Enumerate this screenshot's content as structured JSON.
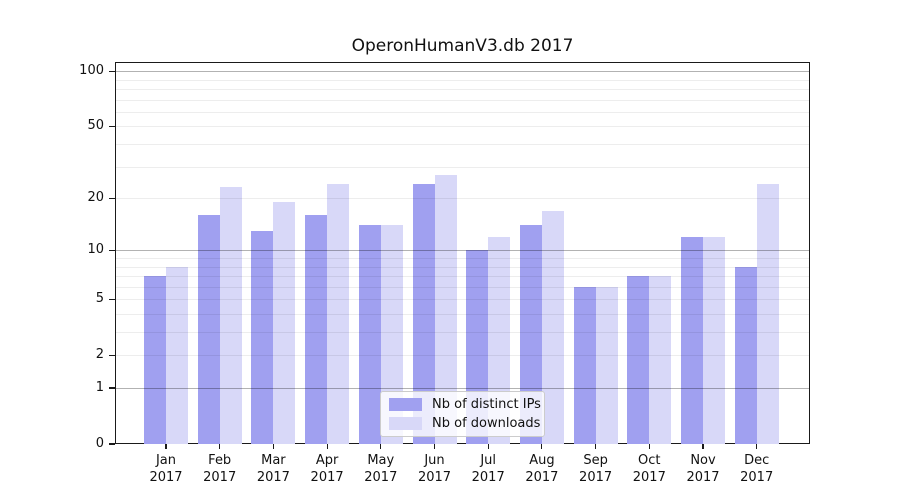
{
  "chart_data": {
    "type": "bar",
    "title": "OperonHumanV3.db 2017",
    "categories": [
      "Jan",
      "Feb",
      "Mar",
      "Apr",
      "May",
      "Jun",
      "Jul",
      "Aug",
      "Sep",
      "Oct",
      "Nov",
      "Dec"
    ],
    "category_year": "2017",
    "series": [
      {
        "name": "Nb of distinct IPs",
        "color": "#a0a0f0",
        "values": [
          7,
          16,
          13,
          16,
          14,
          24,
          10,
          14,
          6,
          7,
          12,
          8
        ]
      },
      {
        "name": "Nb of downloads",
        "color": "#d8d8f8",
        "values": [
          8,
          23,
          19,
          24,
          14,
          27,
          12,
          17,
          6,
          7,
          12,
          24
        ]
      }
    ],
    "yscale": "log1p",
    "ylim": [
      0,
      112
    ],
    "ytick_values": [
      0,
      1,
      2,
      5,
      10,
      20,
      50,
      100
    ],
    "ytick_labels": [
      "0",
      "1",
      "2",
      "5",
      "10",
      "20",
      "50",
      "100"
    ],
    "major_gridline_values": [
      1,
      10,
      100
    ],
    "minor_gridline_values": [
      2,
      3,
      4,
      5,
      6,
      7,
      8,
      9,
      20,
      30,
      40,
      50,
      60,
      70,
      80,
      90
    ],
    "grid": true,
    "legend_position": "lower center"
  }
}
